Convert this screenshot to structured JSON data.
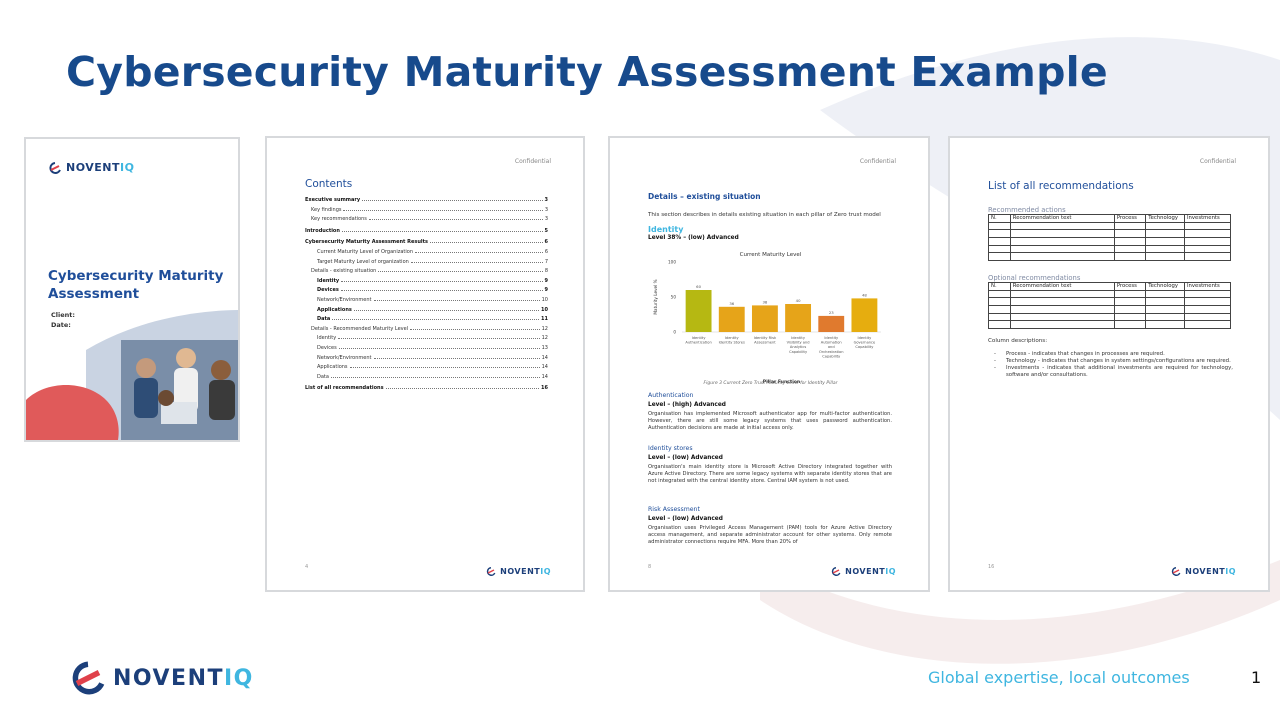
{
  "slide": {
    "title": "Cybersecurity Maturity Assessment Example",
    "tagline": "Global expertise, local outcomes",
    "slide_number": "1",
    "brand_name_a": "NOVENT",
    "brand_name_b": "IQ"
  },
  "cover": {
    "logo_a": "NOVENT",
    "logo_b": "IQ",
    "title_line1": "Cybersecurity Maturity",
    "title_line2": "Assessment",
    "client_label": "Client:",
    "date_label": "Date:"
  },
  "contents_page": {
    "confidential": "Confidential",
    "heading": "Contents",
    "entries": [
      {
        "text": "Executive summary",
        "page": "3",
        "level": 0
      },
      {
        "text": "Key findings",
        "page": "3",
        "level": 1
      },
      {
        "text": "Key recommendations",
        "page": "3",
        "level": 1
      },
      {
        "text": "Introduction",
        "page": "5",
        "level": 0
      },
      {
        "text": "Cybersecurity Maturity Assessment Results",
        "page": "6",
        "level": 0
      },
      {
        "text": "Current Maturity Level of Organization",
        "page": "6",
        "level": 2
      },
      {
        "text": "Target Maturity Level of organization",
        "page": "7",
        "level": 2
      },
      {
        "text": "Details - existing situation",
        "page": "8",
        "level": 1
      },
      {
        "text": "Identity",
        "page": "9",
        "level": 2,
        "bold": true
      },
      {
        "text": "Devices",
        "page": "9",
        "level": 2,
        "bold": true
      },
      {
        "text": "Network/Environment",
        "page": "10",
        "level": 2
      },
      {
        "text": "Applications",
        "page": "10",
        "level": 2,
        "bold": true
      },
      {
        "text": "Data",
        "page": "11",
        "level": 2,
        "bold": true
      },
      {
        "text": "Details - Recommended Maturity Level",
        "page": "12",
        "level": 1
      },
      {
        "text": "Identity",
        "page": "12",
        "level": 2
      },
      {
        "text": "Devices",
        "page": "13",
        "level": 2
      },
      {
        "text": "Network/Environment",
        "page": "14",
        "level": 2
      },
      {
        "text": "Applications",
        "page": "14",
        "level": 2
      },
      {
        "text": "Data",
        "page": "14",
        "level": 2
      },
      {
        "text": "List of all recommendations",
        "page": "16",
        "level": 0
      }
    ],
    "page_number": "4",
    "logo_a": "NOVENT",
    "logo_b": "IQ"
  },
  "details_page": {
    "confidential": "Confidential",
    "section_heading": "Details – existing situation",
    "intro": "This section describes in details existing situation in each pillar of Zero trust model",
    "pillar_heading": "Identity",
    "pillar_level": "Level 38% – (low) Advanced",
    "figure_caption": "Figure 3 Current Zero Trust Maturity Level for Identity Pillar",
    "blocks": [
      {
        "heading": "Authentication",
        "level": "Level – (high) Advanced",
        "text": "Organisation has implemented Microsoft authenticator app for multi-factor authentication. However, there are still some legacy systems that uses password authentication. Authentication decisions are made at initial access only."
      },
      {
        "heading": "Identity stores",
        "level": "Level – (low) Advanced",
        "text": "Organisation's main identity store is Microsoft Active Directory integrated together with Azure Active Directory. There are some legacy systems with separate identity stores that are not integrated with the central identity store. Central IAM system is not used."
      },
      {
        "heading": "Risk Assessment",
        "level": "Level – (low) Advanced",
        "text": "Organisation uses Privileged Access Management (PAM) tools for Azure Active Directory access management, and separate administrator account for other systems. Only remote administrator connections require MFA. More than 20% of"
      }
    ],
    "page_number": "8",
    "logo_a": "NOVENT",
    "logo_b": "IQ"
  },
  "chart_data": {
    "type": "bar",
    "title": "Current Maturity Level",
    "xlabel": "Pillar Function",
    "ylabel": "Maturity Level %",
    "ylim": [
      0,
      100
    ],
    "yticks": [
      0,
      50,
      100
    ],
    "categories": [
      [
        "Identity",
        "Authentication"
      ],
      [
        "Identity",
        "Identity Stores"
      ],
      [
        "Identity Risk",
        "Assessment"
      ],
      [
        "Identity",
        "Visibility and",
        "Analytics",
        "Capability"
      ],
      [
        "Identity",
        "Automation",
        "and",
        "Orchestration",
        "Capability"
      ],
      [
        "Identity",
        "Governance",
        "Capability"
      ]
    ],
    "values": [
      60,
      36,
      38,
      40,
      23,
      48
    ],
    "value_labels": [
      "60",
      "36",
      "38",
      "40",
      "23",
      "48"
    ],
    "colors": [
      "#b6b812",
      "#e6a419",
      "#e6a419",
      "#e6a419",
      "#e07a2e",
      "#e6ad0f"
    ]
  },
  "recommendations_page": {
    "confidential": "Confidential",
    "heading": "List of all recommendations",
    "recommended_label": "Recommended actions",
    "optional_label": "Optional recommendations",
    "columns": [
      "N.",
      "Recommendation text",
      "Process",
      "Technology",
      "Investments"
    ],
    "column_desc_lead": "Column descriptions:",
    "column_desc": [
      "Process - indicates that changes in processes are required.",
      "Technology - indicates that changes in system settings/configurations are required.",
      "Investments - indicates that additional investments are required for technology, software and/or consultations."
    ],
    "page_number": "16",
    "logo_a": "NOVENT",
    "logo_b": "IQ"
  }
}
